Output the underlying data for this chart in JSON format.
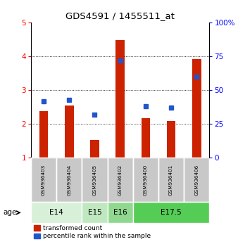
{
  "title": "GDS4591 / 1455511_at",
  "samples": [
    "GSM936403",
    "GSM936404",
    "GSM936405",
    "GSM936402",
    "GSM936400",
    "GSM936401",
    "GSM936406"
  ],
  "red_values": [
    2.38,
    2.55,
    1.52,
    4.48,
    2.18,
    2.08,
    3.92
  ],
  "blue_values": [
    42,
    43,
    32,
    72,
    38,
    37,
    60
  ],
  "ylim_left": [
    1,
    5
  ],
  "ylim_right": [
    0,
    100
  ],
  "yticks_left": [
    1,
    2,
    3,
    4,
    5
  ],
  "yticks_right": [
    0,
    25,
    50,
    75,
    100
  ],
  "yticklabels_right": [
    "0",
    "25",
    "50",
    "75",
    "100%"
  ],
  "age_groups": [
    {
      "label": "E14",
      "cols": [
        0,
        1
      ],
      "color": "#d8f0d8"
    },
    {
      "label": "E15",
      "cols": [
        2
      ],
      "color": "#c0e8c0"
    },
    {
      "label": "E16",
      "cols": [
        3
      ],
      "color": "#90d890"
    },
    {
      "label": "E17.5",
      "cols": [
        4,
        5,
        6
      ],
      "color": "#55cc55"
    }
  ],
  "bar_color_red": "#cc2200",
  "bar_color_blue": "#2255cc",
  "legend_label_red": "transformed count",
  "legend_label_blue": "percentile rank within the sample",
  "age_label": "age",
  "sample_bg": "#c8c8c8",
  "grid_yticks": [
    2,
    3,
    4
  ]
}
